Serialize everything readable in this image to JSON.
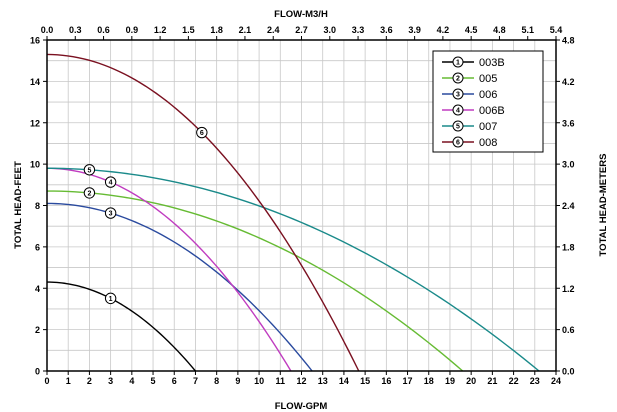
{
  "chart_data": {
    "type": "line",
    "xlabel": "FLOW-GPM",
    "ylabel": "TOTAL HEAD-FEET",
    "x2label": "FLOW-M3/H",
    "y2label": "TOTAL HEAD-METERS",
    "xlim": [
      0,
      24
    ],
    "ylim": [
      0,
      16
    ],
    "x2lim": [
      0,
      5.4
    ],
    "y2lim": [
      0,
      4.8
    ],
    "grid": true,
    "legend_position": "top-right",
    "x_ticks": [
      "0",
      "1",
      "2",
      "3",
      "4",
      "5",
      "6",
      "7",
      "8",
      "9",
      "10",
      "11",
      "12",
      "13",
      "14",
      "15",
      "16",
      "17",
      "18",
      "19",
      "20",
      "21",
      "22",
      "23",
      "24"
    ],
    "y_ticks": [
      "0",
      "2",
      "4",
      "6",
      "8",
      "10",
      "12",
      "14",
      "16"
    ],
    "x2_ticks": [
      "0.0",
      "0.3",
      "0.6",
      "0.9",
      "1.2",
      "1.5",
      "1.8",
      "2.1",
      "2.4",
      "2.7",
      "3.0",
      "3.3",
      "3.6",
      "3.9",
      "4.2",
      "4.5",
      "4.8",
      "5.1",
      "5.4"
    ],
    "y2_ticks": [
      "0.0",
      "0.6",
      "1.2",
      "1.8",
      "2.4",
      "3.0",
      "3.6",
      "4.2",
      "4.8"
    ],
    "series": [
      {
        "name": "003B",
        "marker": "1",
        "color": "#000000",
        "shutoff": 4.3,
        "max_flow": 7.0,
        "marker_x": 3.0
      },
      {
        "name": "005",
        "marker": "2",
        "color": "#66bb33",
        "shutoff": 8.7,
        "max_flow": 19.6,
        "marker_x": 2.0
      },
      {
        "name": "006",
        "marker": "3",
        "color": "#2a4a9e",
        "shutoff": 8.1,
        "max_flow": 12.5,
        "marker_x": 3.0
      },
      {
        "name": "006B",
        "marker": "4",
        "color": "#c03cc0",
        "shutoff": 9.8,
        "max_flow": 11.5,
        "marker_x": 3.0
      },
      {
        "name": "007",
        "marker": "5",
        "color": "#1a8a8a",
        "shutoff": 9.8,
        "max_flow": 23.2,
        "marker_x": 2.0
      },
      {
        "name": "008",
        "marker": "6",
        "color": "#7a1020",
        "shutoff": 15.3,
        "max_flow": 14.7,
        "marker_x": 7.3
      }
    ]
  }
}
